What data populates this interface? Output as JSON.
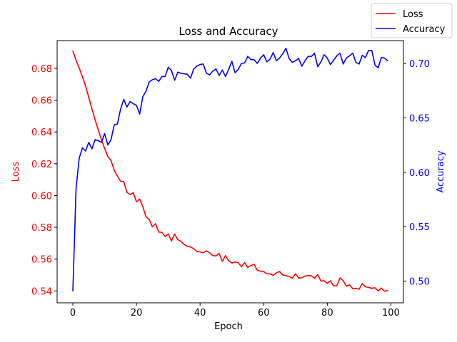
{
  "chart_data": {
    "type": "line",
    "title": "Loss and Accuracy",
    "xlabel": "Epoch",
    "ylabel_left": "Loss",
    "ylabel_right": "Accuracy",
    "xlim": [
      -4.95,
      103.95
    ],
    "ylim_left": [
      0.5325,
      0.6975
    ],
    "ylim_right": [
      0.48,
      0.721
    ],
    "x_ticks": [
      0,
      20,
      40,
      60,
      80,
      100
    ],
    "y_ticks_left": [
      0.54,
      0.56,
      0.58,
      0.6,
      0.62,
      0.64,
      0.66,
      0.68
    ],
    "y_ticks_right": [
      0.5,
      0.55,
      0.6,
      0.65,
      0.7
    ],
    "legend_position": "upper-right-outside",
    "grid": false,
    "colors": {
      "loss": "#ff0000",
      "accuracy": "#0000ff"
    },
    "x": [
      0,
      1,
      2,
      3,
      4,
      5,
      6,
      7,
      8,
      9,
      10,
      11,
      12,
      13,
      14,
      15,
      16,
      17,
      18,
      19,
      20,
      21,
      22,
      23,
      24,
      25,
      26,
      27,
      28,
      29,
      30,
      31,
      32,
      33,
      34,
      35,
      36,
      37,
      38,
      39,
      40,
      41,
      42,
      43,
      44,
      45,
      46,
      47,
      48,
      49,
      50,
      51,
      52,
      53,
      54,
      55,
      56,
      57,
      58,
      59,
      60,
      61,
      62,
      63,
      64,
      65,
      66,
      67,
      68,
      69,
      70,
      71,
      72,
      73,
      74,
      75,
      76,
      77,
      78,
      79,
      80,
      81,
      82,
      83,
      84,
      85,
      86,
      87,
      88,
      89,
      90,
      91,
      92,
      93,
      94,
      95,
      96,
      97,
      98,
      99
    ],
    "series": [
      {
        "name": "Loss",
        "axis": "left",
        "color": "#ff0000",
        "values": [
          0.691,
          0.6852,
          0.6802,
          0.6747,
          0.669,
          0.6618,
          0.6545,
          0.6476,
          0.6412,
          0.635,
          0.6296,
          0.6245,
          0.622,
          0.616,
          0.6123,
          0.609,
          0.6088,
          0.602,
          0.6006,
          0.6018,
          0.596,
          0.5978,
          0.593,
          0.5866,
          0.585,
          0.5803,
          0.5823,
          0.577,
          0.5768,
          0.5742,
          0.5758,
          0.5714,
          0.5758,
          0.5722,
          0.5712,
          0.5692,
          0.568,
          0.5676,
          0.5666,
          0.5648,
          0.5645,
          0.564,
          0.5652,
          0.564,
          0.5622,
          0.562,
          0.5636,
          0.5586,
          0.5622,
          0.559,
          0.5575,
          0.5582,
          0.5578,
          0.5552,
          0.5578,
          0.5548,
          0.556,
          0.5567,
          0.553,
          0.5524,
          0.5522,
          0.5508,
          0.5507,
          0.5498,
          0.5514,
          0.5522,
          0.55,
          0.5496,
          0.5491,
          0.548,
          0.5508,
          0.5481,
          0.5482,
          0.5494,
          0.5496,
          0.5495,
          0.548,
          0.5502,
          0.5462,
          0.5464,
          0.5448,
          0.5464,
          0.5432,
          0.5432,
          0.5482,
          0.5464,
          0.543,
          0.5438,
          0.5414,
          0.5416,
          0.541,
          0.5446,
          0.5426,
          0.5422,
          0.5416,
          0.542,
          0.54,
          0.5418,
          0.5398,
          0.5402
        ]
      },
      {
        "name": "Accuracy",
        "axis": "right",
        "color": "#0000ff",
        "values": [
          0.491,
          0.585,
          0.613,
          0.6225,
          0.6195,
          0.6275,
          0.6215,
          0.63,
          0.629,
          0.6275,
          0.6355,
          0.625,
          0.63,
          0.6435,
          0.6445,
          0.658,
          0.667,
          0.66,
          0.665,
          0.663,
          0.6615,
          0.6535,
          0.6695,
          0.6745,
          0.683,
          0.685,
          0.686,
          0.6835,
          0.688,
          0.688,
          0.6965,
          0.6935,
          0.6845,
          0.692,
          0.691,
          0.6905,
          0.69,
          0.6865,
          0.695,
          0.6975,
          0.699,
          0.6995,
          0.691,
          0.6895,
          0.693,
          0.695,
          0.689,
          0.694,
          0.688,
          0.6945,
          0.702,
          0.6915,
          0.6945,
          0.7,
          0.7005,
          0.7065,
          0.7035,
          0.7035,
          0.7,
          0.705,
          0.708,
          0.7015,
          0.704,
          0.71,
          0.7025,
          0.705,
          0.709,
          0.714,
          0.7045,
          0.701,
          0.7025,
          0.7045,
          0.6975,
          0.7025,
          0.7065,
          0.7065,
          0.7095,
          0.697,
          0.7015,
          0.708,
          0.705,
          0.699,
          0.703,
          0.707,
          0.7095,
          0.6995,
          0.705,
          0.707,
          0.7095,
          0.701,
          0.6995,
          0.7075,
          0.7055,
          0.712,
          0.712,
          0.6985,
          0.696,
          0.7055,
          0.705,
          0.7025
        ]
      }
    ]
  }
}
